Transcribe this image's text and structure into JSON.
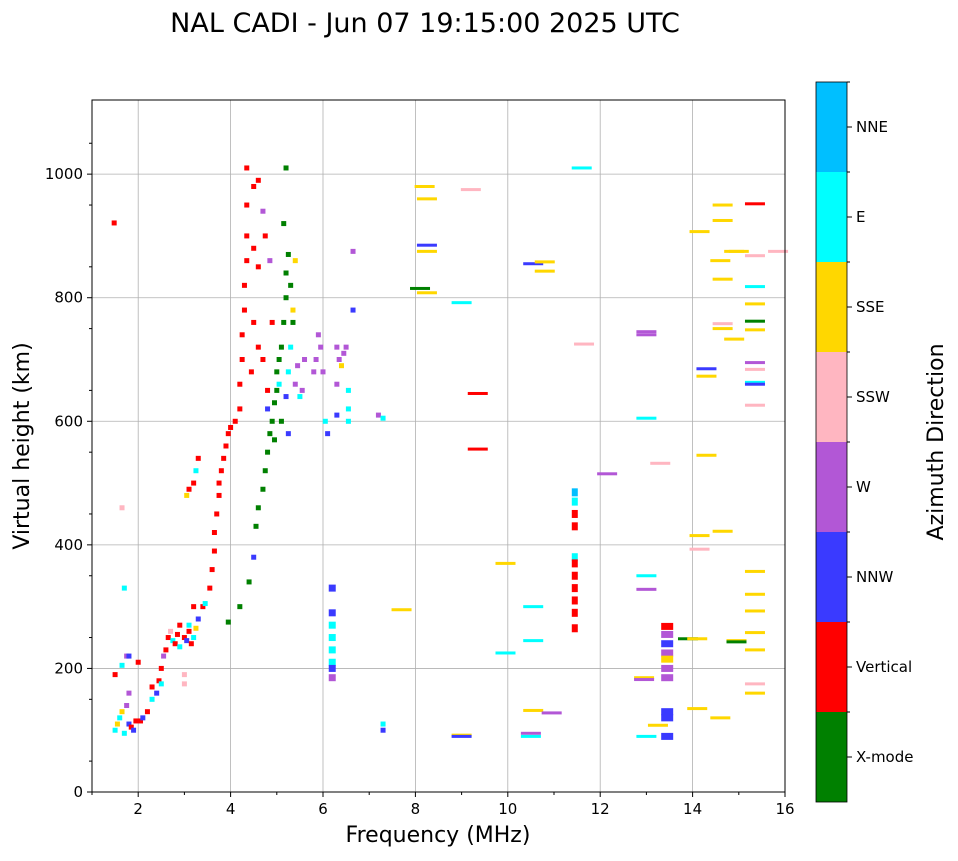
{
  "chart_data": {
    "type": "scatter",
    "title": "NAL CADI - Jun 07 19:15:00 2025 UTC",
    "xlabel": "Frequency (MHz)",
    "ylabel": "Virtual height (km)",
    "xlim": [
      1,
      16
    ],
    "ylim": [
      0,
      1120
    ],
    "xticks": [
      2,
      4,
      6,
      8,
      10,
      12,
      14,
      16
    ],
    "yticks": [
      0,
      200,
      400,
      600,
      800,
      1000
    ],
    "grid": true,
    "colorbar": {
      "label": "Azimuth Direction",
      "categories": [
        "X-mode",
        "Vertical",
        "NNW",
        "W",
        "SSW",
        "SSE",
        "E",
        "NNE"
      ],
      "colors": [
        "#008000",
        "#ff0000",
        "#3a3aff",
        "#b257d6",
        "#ffb6c1",
        "#ffd700",
        "#00ffff",
        "#00bfff"
      ]
    },
    "point_fields": [
      "frequency_mhz",
      "height_km",
      "category_index"
    ],
    "points": [
      [
        1.5,
        100,
        6
      ],
      [
        1.55,
        110,
        5
      ],
      [
        1.6,
        120,
        6
      ],
      [
        1.65,
        130,
        5
      ],
      [
        1.7,
        95,
        6
      ],
      [
        1.75,
        140,
        3
      ],
      [
        1.8,
        110,
        2
      ],
      [
        1.8,
        160,
        3
      ],
      [
        1.85,
        105,
        1
      ],
      [
        1.9,
        100,
        2
      ],
      [
        1.95,
        115,
        1
      ],
      [
        1.5,
        190,
        1
      ],
      [
        1.75,
        220,
        3
      ],
      [
        1.65,
        205,
        6
      ],
      [
        1.8,
        220,
        2
      ],
      [
        2.0,
        210,
        1
      ],
      [
        1.7,
        330,
        6
      ],
      [
        1.65,
        460,
        4
      ],
      [
        1.48,
        921,
        1
      ],
      [
        2.05,
        115,
        1
      ],
      [
        2.1,
        120,
        2
      ],
      [
        2.2,
        130,
        1
      ],
      [
        2.3,
        150,
        6
      ],
      [
        2.3,
        170,
        1
      ],
      [
        2.4,
        160,
        2
      ],
      [
        2.45,
        180,
        1
      ],
      [
        2.5,
        200,
        1
      ],
      [
        2.5,
        175,
        6
      ],
      [
        2.55,
        220,
        3
      ],
      [
        2.6,
        230,
        1
      ],
      [
        2.65,
        250,
        1
      ],
      [
        2.7,
        260,
        4
      ],
      [
        2.75,
        245,
        6
      ],
      [
        2.8,
        240,
        1
      ],
      [
        2.85,
        255,
        1
      ],
      [
        2.9,
        235,
        6
      ],
      [
        3.0,
        250,
        1
      ],
      [
        3.0,
        190,
        4
      ],
      [
        3.0,
        175,
        4
      ],
      [
        3.05,
        245,
        2
      ],
      [
        3.1,
        260,
        1
      ],
      [
        3.15,
        240,
        1
      ],
      [
        3.2,
        250,
        6
      ],
      [
        3.25,
        265,
        5
      ],
      [
        3.3,
        280,
        2
      ],
      [
        3.4,
        300,
        1
      ],
      [
        3.45,
        305,
        6
      ],
      [
        3.1,
        270,
        6
      ],
      [
        2.9,
        270,
        1
      ],
      [
        3.2,
        300,
        1
      ],
      [
        3.05,
        480,
        5
      ],
      [
        3.1,
        490,
        1
      ],
      [
        3.2,
        500,
        1
      ],
      [
        3.3,
        540,
        1
      ],
      [
        3.25,
        520,
        6
      ],
      [
        3.55,
        330,
        1
      ],
      [
        3.6,
        360,
        1
      ],
      [
        3.65,
        390,
        1
      ],
      [
        3.65,
        420,
        1
      ],
      [
        3.7,
        450,
        1
      ],
      [
        3.75,
        480,
        1
      ],
      [
        3.75,
        500,
        1
      ],
      [
        3.8,
        520,
        1
      ],
      [
        3.85,
        540,
        1
      ],
      [
        3.9,
        560,
        1
      ],
      [
        3.95,
        580,
        1
      ],
      [
        4.0,
        590,
        1
      ],
      [
        4.1,
        600,
        1
      ],
      [
        4.2,
        620,
        1
      ],
      [
        4.2,
        660,
        1
      ],
      [
        4.25,
        700,
        1
      ],
      [
        4.25,
        740,
        1
      ],
      [
        4.3,
        780,
        1
      ],
      [
        4.3,
        820,
        1
      ],
      [
        4.35,
        860,
        1
      ],
      [
        4.35,
        900,
        1
      ],
      [
        4.35,
        950,
        1
      ],
      [
        4.35,
        1010,
        1
      ],
      [
        4.5,
        980,
        1
      ],
      [
        4.6,
        990,
        1
      ],
      [
        4.5,
        880,
        1
      ],
      [
        4.6,
        850,
        1
      ],
      [
        4.5,
        760,
        1
      ],
      [
        4.6,
        720,
        1
      ],
      [
        4.45,
        680,
        1
      ],
      [
        4.7,
        700,
        1
      ],
      [
        4.8,
        650,
        1
      ],
      [
        4.75,
        900,
        1
      ],
      [
        4.9,
        760,
        1
      ],
      [
        3.95,
        275,
        0
      ],
      [
        4.2,
        300,
        0
      ],
      [
        4.4,
        340,
        0
      ],
      [
        4.5,
        380,
        2
      ],
      [
        4.55,
        430,
        0
      ],
      [
        4.6,
        460,
        0
      ],
      [
        4.7,
        490,
        0
      ],
      [
        4.75,
        520,
        0
      ],
      [
        4.8,
        550,
        0
      ],
      [
        4.85,
        580,
        0
      ],
      [
        4.9,
        600,
        0
      ],
      [
        4.95,
        630,
        0
      ],
      [
        5.0,
        650,
        0
      ],
      [
        5.0,
        680,
        0
      ],
      [
        5.05,
        700,
        0
      ],
      [
        5.1,
        720,
        0
      ],
      [
        5.15,
        760,
        0
      ],
      [
        5.2,
        800,
        0
      ],
      [
        5.2,
        840,
        0
      ],
      [
        5.25,
        870,
        0
      ],
      [
        5.3,
        820,
        0
      ],
      [
        5.15,
        920,
        0
      ],
      [
        5.2,
        1010,
        0
      ],
      [
        5.35,
        760,
        0
      ],
      [
        5.1,
        600,
        0
      ],
      [
        4.95,
        570,
        0
      ],
      [
        5.25,
        680,
        6
      ],
      [
        5.3,
        720,
        6
      ],
      [
        5.05,
        660,
        6
      ],
      [
        4.8,
        620,
        2
      ],
      [
        5.2,
        640,
        2
      ],
      [
        5.4,
        660,
        3
      ],
      [
        5.45,
        690,
        3
      ],
      [
        5.55,
        650,
        3
      ],
      [
        5.6,
        700,
        3
      ],
      [
        5.35,
        780,
        5
      ],
      [
        5.4,
        860,
        5
      ],
      [
        5.5,
        640,
        6
      ],
      [
        4.7,
        940,
        3
      ],
      [
        4.85,
        860,
        3
      ],
      [
        5.25,
        580,
        2
      ],
      [
        5.8,
        680,
        3
      ],
      [
        5.85,
        700,
        3
      ],
      [
        5.9,
        740,
        3
      ],
      [
        5.95,
        720,
        3
      ],
      [
        6.0,
        680,
        3
      ],
      [
        6.05,
        600,
        6
      ],
      [
        6.3,
        720,
        3
      ],
      [
        6.35,
        700,
        3
      ],
      [
        6.4,
        690,
        5
      ],
      [
        6.45,
        710,
        3
      ],
      [
        6.5,
        720,
        3
      ],
      [
        6.55,
        650,
        6
      ],
      [
        6.55,
        620,
        6
      ],
      [
        6.55,
        600,
        6
      ],
      [
        6.3,
        610,
        2
      ],
      [
        6.65,
        780,
        2
      ],
      [
        6.65,
        875,
        3
      ],
      [
        6.3,
        660,
        3
      ],
      [
        7.2,
        610,
        3
      ],
      [
        7.3,
        605,
        6
      ],
      [
        6.1,
        580,
        2
      ],
      [
        6.2,
        330,
        2
      ],
      [
        6.2,
        290,
        2
      ],
      [
        6.2,
        270,
        6
      ],
      [
        6.2,
        250,
        6
      ],
      [
        6.2,
        230,
        6
      ],
      [
        6.2,
        210,
        6
      ],
      [
        6.2,
        200,
        2
      ],
      [
        6.2,
        185,
        3
      ],
      [
        7.3,
        110,
        6
      ],
      [
        7.3,
        100,
        2
      ],
      [
        7.7,
        295,
        5
      ],
      [
        8.2,
        980,
        5
      ],
      [
        8.25,
        960,
        5
      ],
      [
        8.25,
        885,
        2
      ],
      [
        8.25,
        875,
        5
      ],
      [
        8.1,
        815,
        0
      ],
      [
        8.25,
        808,
        5
      ],
      [
        9.0,
        92,
        5
      ],
      [
        9.0,
        90,
        2
      ],
      [
        9.2,
        975,
        4
      ],
      [
        9.0,
        792,
        6
      ],
      [
        9.35,
        645,
        1
      ],
      [
        9.35,
        555,
        1
      ],
      [
        9.95,
        370,
        5
      ],
      [
        9.95,
        225,
        6
      ],
      [
        10.55,
        855,
        2
      ],
      [
        10.8,
        858,
        5
      ],
      [
        10.8,
        843,
        5
      ],
      [
        10.55,
        300,
        6
      ],
      [
        10.55,
        245,
        6
      ],
      [
        10.55,
        132,
        5
      ],
      [
        10.5,
        95,
        3
      ],
      [
        10.5,
        90,
        6
      ],
      [
        10.95,
        128,
        3
      ],
      [
        11.6,
        1010,
        6
      ],
      [
        11.65,
        725,
        4
      ],
      [
        11.45,
        485,
        7
      ],
      [
        11.45,
        470,
        6
      ],
      [
        11.45,
        450,
        1
      ],
      [
        11.45,
        430,
        1
      ],
      [
        11.45,
        380,
        6
      ],
      [
        11.45,
        370,
        1
      ],
      [
        11.45,
        350,
        1
      ],
      [
        11.45,
        330,
        1
      ],
      [
        11.45,
        310,
        1
      ],
      [
        11.45,
        290,
        1
      ],
      [
        11.45,
        265,
        1
      ],
      [
        12.15,
        515,
        3
      ],
      [
        13.0,
        745,
        3
      ],
      [
        13.0,
        740,
        3
      ],
      [
        13.0,
        605,
        6
      ],
      [
        13.3,
        532,
        4
      ],
      [
        13.0,
        350,
        6
      ],
      [
        13.0,
        328,
        3
      ],
      [
        12.95,
        185,
        5
      ],
      [
        12.95,
        182,
        3
      ],
      [
        13.0,
        90,
        6
      ],
      [
        13.25,
        108,
        5
      ],
      [
        13.45,
        268,
        1
      ],
      [
        13.45,
        255,
        3
      ],
      [
        13.45,
        240,
        2
      ],
      [
        13.45,
        225,
        3
      ],
      [
        13.45,
        215,
        5
      ],
      [
        13.45,
        200,
        3
      ],
      [
        13.45,
        185,
        3
      ],
      [
        13.45,
        130,
        2
      ],
      [
        13.45,
        120,
        2
      ],
      [
        13.45,
        90,
        2
      ],
      [
        13.9,
        248,
        0
      ],
      [
        14.1,
        248,
        5
      ],
      [
        14.15,
        415,
        5
      ],
      [
        14.15,
        393,
        4
      ],
      [
        14.15,
        907,
        5
      ],
      [
        14.1,
        135,
        5
      ],
      [
        14.3,
        685,
        2
      ],
      [
        14.3,
        673,
        5
      ],
      [
        14.3,
        545,
        5
      ],
      [
        14.65,
        950,
        5
      ],
      [
        14.65,
        925,
        5
      ],
      [
        14.6,
        860,
        5
      ],
      [
        14.65,
        830,
        5
      ],
      [
        14.65,
        758,
        4
      ],
      [
        14.65,
        750,
        5
      ],
      [
        14.65,
        422,
        5
      ],
      [
        14.6,
        120,
        5
      ],
      [
        14.9,
        733,
        5
      ],
      [
        14.9,
        875,
        5
      ],
      [
        15.0,
        875,
        5
      ],
      [
        14.95,
        245,
        5
      ],
      [
        14.95,
        243,
        0
      ],
      [
        15.35,
        952,
        1
      ],
      [
        15.35,
        868,
        4
      ],
      [
        15.35,
        818,
        6
      ],
      [
        15.35,
        790,
        5
      ],
      [
        15.35,
        762,
        0
      ],
      [
        15.35,
        748,
        5
      ],
      [
        15.35,
        695,
        3
      ],
      [
        15.35,
        684,
        4
      ],
      [
        15.35,
        663,
        6
      ],
      [
        15.35,
        660,
        2
      ],
      [
        15.35,
        626,
        4
      ],
      [
        15.35,
        357,
        5
      ],
      [
        15.35,
        320,
        5
      ],
      [
        15.35,
        293,
        5
      ],
      [
        15.35,
        258,
        5
      ],
      [
        15.35,
        230,
        5
      ],
      [
        15.35,
        175,
        4
      ],
      [
        15.35,
        160,
        5
      ],
      [
        15.85,
        875,
        4
      ]
    ]
  }
}
